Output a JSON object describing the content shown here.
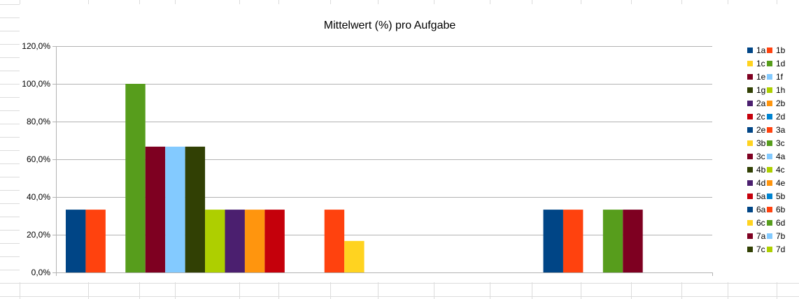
{
  "chart_data": {
    "type": "bar",
    "title": "Mittelwert (%) pro Aufgabe",
    "xlabel": "",
    "ylabel": "",
    "ylim": [
      0,
      120
    ],
    "yticks": [
      "0,0%",
      "20,0%",
      "40,0%",
      "60,0%",
      "80,0%",
      "100,0%",
      "120,0%"
    ],
    "grid": true,
    "legend_position": "right",
    "series": [
      {
        "name": "1a",
        "color": "#004586",
        "value": 33.3
      },
      {
        "name": "1b",
        "color": "#ff420e",
        "value": 33.3
      },
      {
        "name": "1c",
        "color": "#ffd320",
        "value": 0
      },
      {
        "name": "1d",
        "color": "#579d1c",
        "value": 100
      },
      {
        "name": "1e",
        "color": "#7e0021",
        "value": 66.7
      },
      {
        "name": "1f",
        "color": "#83caff",
        "value": 66.7
      },
      {
        "name": "1g",
        "color": "#314004",
        "value": 66.7
      },
      {
        "name": "1h",
        "color": "#aecf00",
        "value": 33.3
      },
      {
        "name": "2a",
        "color": "#4b1f6f",
        "value": 33.3
      },
      {
        "name": "2b",
        "color": "#ff950e",
        "value": 33.3
      },
      {
        "name": "2c",
        "color": "#c5000b",
        "value": 33.3
      },
      {
        "name": "2d",
        "color": "#0084d1",
        "value": 0
      },
      {
        "name": "2e",
        "color": "#004586",
        "value": 0
      },
      {
        "name": "3a",
        "color": "#ff420e",
        "value": 33.3
      },
      {
        "name": "3b",
        "color": "#ffd320",
        "value": 16.7
      },
      {
        "name": "3c",
        "color": "#579d1c",
        "value": 0
      },
      {
        "name": "3c",
        "color": "#7e0021",
        "value": 0
      },
      {
        "name": "4a",
        "color": "#83caff",
        "value": 0
      },
      {
        "name": "4b",
        "color": "#314004",
        "value": 0
      },
      {
        "name": "4c",
        "color": "#aecf00",
        "value": 0
      },
      {
        "name": "4d",
        "color": "#4b1f6f",
        "value": 0
      },
      {
        "name": "4e",
        "color": "#ff950e",
        "value": 0
      },
      {
        "name": "5a",
        "color": "#c5000b",
        "value": 0
      },
      {
        "name": "5b",
        "color": "#0084d1",
        "value": 0
      },
      {
        "name": "6a",
        "color": "#004586",
        "value": 33.3
      },
      {
        "name": "6b",
        "color": "#ff420e",
        "value": 33.3
      },
      {
        "name": "6c",
        "color": "#ffd320",
        "value": 0
      },
      {
        "name": "6d",
        "color": "#579d1c",
        "value": 33.3
      },
      {
        "name": "7a",
        "color": "#7e0021",
        "value": 33.3
      },
      {
        "name": "7b",
        "color": "#83caff",
        "value": 0
      },
      {
        "name": "7c",
        "color": "#314004",
        "value": 0
      },
      {
        "name": "7d",
        "color": "#aecf00",
        "value": 0
      }
    ]
  }
}
